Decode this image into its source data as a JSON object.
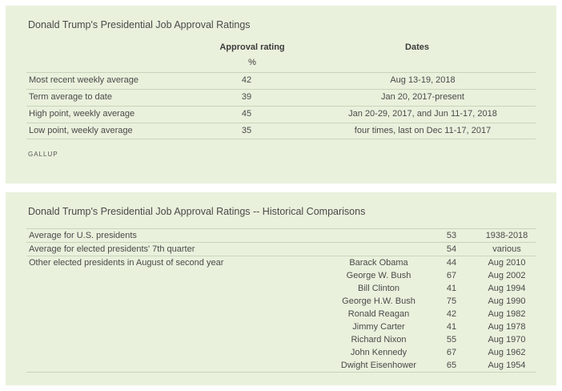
{
  "table1": {
    "title": "Donald Trump's Presidential Job Approval Ratings",
    "col_approval": "Approval rating",
    "col_approval_unit": "%",
    "col_dates": "Dates",
    "rows": [
      {
        "label": "Most recent weekly average",
        "value": "42",
        "dates": "Aug 13-19, 2018"
      },
      {
        "label": "Term average to date",
        "value": "39",
        "dates": "Jan 20, 2017-present"
      },
      {
        "label": "High point, weekly average",
        "value": "45",
        "dates": "Jan 20-29, 2017, and Jun 11-17, 2018"
      },
      {
        "label": "Low point, weekly average",
        "value": "35",
        "dates": "four times, last on Dec 11-17, 2017"
      }
    ],
    "source": "GALLUP"
  },
  "table2": {
    "title": "Donald Trump's Presidential Job Approval Ratings -- Historical Comparisons",
    "avg_us": {
      "label": "Average for U.S. presidents",
      "value": "53",
      "period": "1938-2018"
    },
    "avg_7th": {
      "label": "Average for elected presidents' 7th quarter",
      "value": "54",
      "period": "various"
    },
    "others_label": "Other elected presidents in August of second year",
    "presidents": [
      {
        "name": "Barack Obama",
        "value": "44",
        "period": "Aug 2010"
      },
      {
        "name": "George W. Bush",
        "value": "67",
        "period": "Aug 2002"
      },
      {
        "name": "Bill Clinton",
        "value": "41",
        "period": "Aug 1994"
      },
      {
        "name": "George H.W. Bush",
        "value": "75",
        "period": "Aug 1990"
      },
      {
        "name": "Ronald Reagan",
        "value": "42",
        "period": "Aug 1982"
      },
      {
        "name": "Jimmy Carter",
        "value": "41",
        "period": "Aug 1978"
      },
      {
        "name": "Richard Nixon",
        "value": "55",
        "period": "Aug 1970"
      },
      {
        "name": "John Kennedy",
        "value": "67",
        "period": "Aug 1962"
      },
      {
        "name": "Dwight Eisenhower",
        "value": "65",
        "period": "Aug 1954"
      }
    ]
  }
}
